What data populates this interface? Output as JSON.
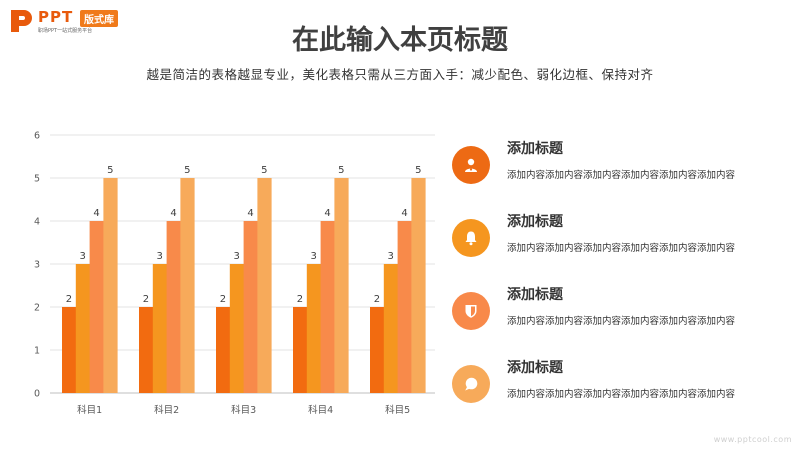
{
  "logo": {
    "brand": "PPT",
    "tag": "版式库",
    "sub": "职场PPT一站式服务平台"
  },
  "header": {
    "title": "在此输入本页标题",
    "subtitle": "越是简洁的表格越显专业，美化表格只需从三方面入手：减少配色、弱化边框、保持对齐"
  },
  "chart_data": {
    "type": "bar",
    "categories": [
      "科目1",
      "科目2",
      "科目3",
      "科目4",
      "科目5"
    ],
    "series": [
      {
        "values": [
          2,
          2,
          2,
          2,
          2
        ],
        "color": "#f26b10"
      },
      {
        "values": [
          3,
          3,
          3,
          3,
          3
        ],
        "color": "#f5961f"
      },
      {
        "values": [
          4,
          4,
          4,
          4,
          4
        ],
        "color": "#f88a4a"
      },
      {
        "values": [
          5,
          5,
          5,
          5,
          5
        ],
        "color": "#f7aa5a"
      }
    ],
    "yticks": [
      "0",
      "1",
      "2",
      "3",
      "4",
      "5",
      "6"
    ],
    "ylim": [
      0,
      6
    ],
    "grid": true,
    "data_labels": true,
    "legend": "none"
  },
  "items": [
    {
      "title": "添加标题",
      "desc": "添加内容添加内容添加内容添加内容添加内容添加内容",
      "icon": "user-badge-icon",
      "color": "#ed6a14"
    },
    {
      "title": "添加标题",
      "desc": "添加内容添加内容添加内容添加内容添加内容添加内容",
      "icon": "bell-icon",
      "color": "#f5961f"
    },
    {
      "title": "添加标题",
      "desc": "添加内容添加内容添加内容添加内容添加内容添加内容",
      "icon": "shield-icon",
      "color": "#f8894a"
    },
    {
      "title": "添加标题",
      "desc": "添加内容添加内容添加内容添加内容添加内容添加内容",
      "icon": "chat-bubble-icon",
      "color": "#f7aa5a"
    }
  ],
  "watermark": "www.pptcool.com"
}
